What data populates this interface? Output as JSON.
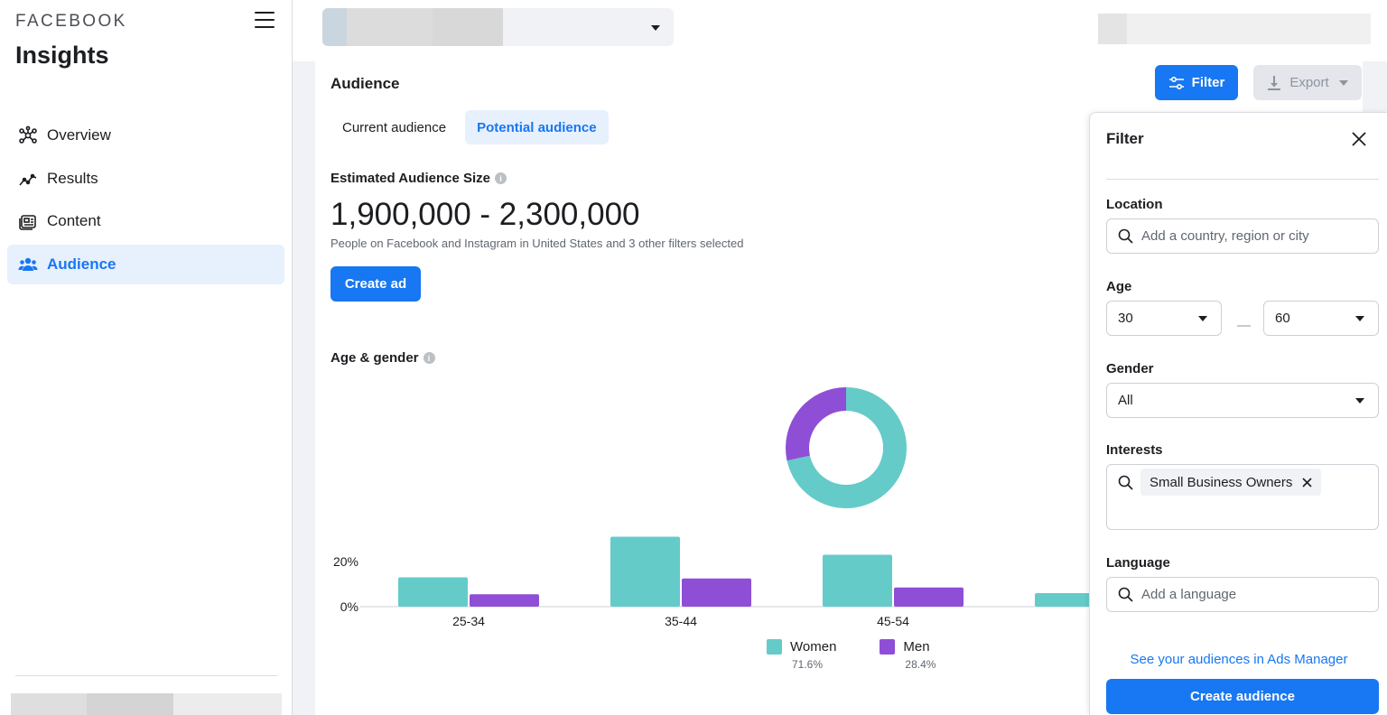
{
  "sidebar": {
    "brand": "FACEBOOK",
    "app_title": "Insights",
    "items": [
      {
        "label": "Overview",
        "icon": "overview-icon",
        "active": false
      },
      {
        "label": "Results",
        "icon": "results-icon",
        "active": false
      },
      {
        "label": "Content",
        "icon": "content-icon",
        "active": false
      },
      {
        "label": "Audience",
        "icon": "audience-icon",
        "active": true
      }
    ]
  },
  "header": {
    "filter_label": "Filter",
    "export_label": "Export"
  },
  "main": {
    "section_title": "Audience",
    "tabs": [
      {
        "label": "Current audience",
        "active": false
      },
      {
        "label": "Potential audience",
        "active": true
      }
    ],
    "estimated_label": "Estimated Audience Size",
    "estimated_value": "1,900,000 - 2,300,000",
    "estimated_caption": "People on Facebook and Instagram in United States and 3 other filters selected",
    "create_ad_label": "Create ad",
    "age_gender_label": "Age & gender"
  },
  "chart_data": {
    "type": "bar",
    "categories": [
      "25-34",
      "35-44",
      "45-54",
      ""
    ],
    "series": [
      {
        "name": "Women",
        "values": [
          13,
          31,
          23,
          6
        ],
        "color": "#64cbc9"
      },
      {
        "name": "Men",
        "values": [
          5.5,
          12.5,
          8.5,
          0
        ],
        "color": "#8f4ed6"
      }
    ],
    "ytick_labels": [
      "0%",
      "20%"
    ],
    "ylim": [
      0,
      40
    ],
    "legend": [
      {
        "name": "Women",
        "pct": "71.6%"
      },
      {
        "name": "Men",
        "pct": "28.4%"
      }
    ],
    "donut": [
      {
        "name": "Women",
        "value": 71.6,
        "color": "#64cbc9"
      },
      {
        "name": "Men",
        "value": 28.4,
        "color": "#8f4ed6"
      }
    ]
  },
  "filter_panel": {
    "title": "Filter",
    "location_label": "Location",
    "location_placeholder": "Add a country, region or city",
    "age_label": "Age",
    "age_min": "30",
    "age_max": "60",
    "age_separator": "—",
    "gender_label": "Gender",
    "gender_value": "All",
    "interests_label": "Interests",
    "interests": [
      {
        "label": "Small Business Owners"
      }
    ],
    "language_label": "Language",
    "language_placeholder": "Add a language",
    "ads_manager_link": "See your audiences in Ads Manager",
    "create_audience_label": "Create audience"
  },
  "colors": {
    "accent": "#1877f2",
    "women": "#64cbc9",
    "men": "#8f4ed6"
  }
}
